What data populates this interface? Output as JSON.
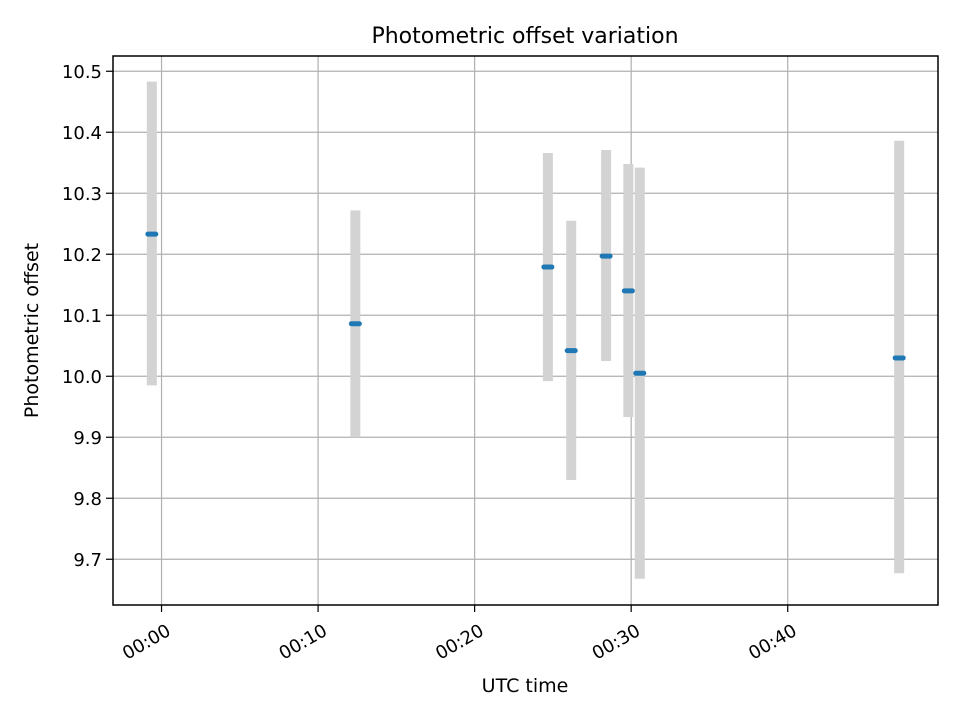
{
  "chart_data": {
    "type": "scatter",
    "title": "Photometric offset variation",
    "xlabel": "UTC time",
    "ylabel": "Photometric offset",
    "x_tick_labels": [
      "00:00",
      "00:10",
      "00:20",
      "00:30",
      "00:40"
    ],
    "x_tick_minutes": [
      0,
      10,
      20,
      30,
      40
    ],
    "xlim_minutes": [
      -3.1,
      49.6
    ],
    "y_ticks": [
      9.7,
      9.8,
      9.9,
      10.0,
      10.1,
      10.2,
      10.3,
      10.4,
      10.5
    ],
    "y_tick_labels": [
      "9.7",
      "9.8",
      "9.9",
      "10.0",
      "10.1",
      "10.2",
      "10.3",
      "10.4",
      "10.5"
    ],
    "ylim": [
      9.625,
      10.525
    ],
    "grid": true,
    "error_bars": true,
    "series": [
      {
        "points": [
          {
            "time": "23:59:23",
            "minute": -0.62,
            "y": 10.233,
            "ymin": 9.985,
            "ymax": 10.483
          },
          {
            "time": "00:12:23",
            "minute": 12.38,
            "y": 10.086,
            "ymin": 9.9,
            "ymax": 10.272
          },
          {
            "time": "00:24:41",
            "minute": 24.68,
            "y": 10.179,
            "ymin": 9.992,
            "ymax": 10.366
          },
          {
            "time": "00:26:10",
            "minute": 26.17,
            "y": 10.042,
            "ymin": 9.83,
            "ymax": 10.255
          },
          {
            "time": "00:28:24",
            "minute": 28.4,
            "y": 10.197,
            "ymin": 10.025,
            "ymax": 10.371
          },
          {
            "time": "00:29:49",
            "minute": 29.82,
            "y": 10.14,
            "ymin": 9.933,
            "ymax": 10.348
          },
          {
            "time": "00:30:33",
            "minute": 30.55,
            "y": 10.005,
            "ymin": 9.668,
            "ymax": 10.342
          },
          {
            "time": "00:47:07",
            "minute": 47.12,
            "y": 10.03,
            "ymin": 9.677,
            "ymax": 10.386
          }
        ]
      }
    ]
  },
  "colors": {
    "marker": "#1f77b4",
    "error_bar": "#d3d3d3",
    "grid": "#b0b0b0",
    "axes": "#000000"
  }
}
